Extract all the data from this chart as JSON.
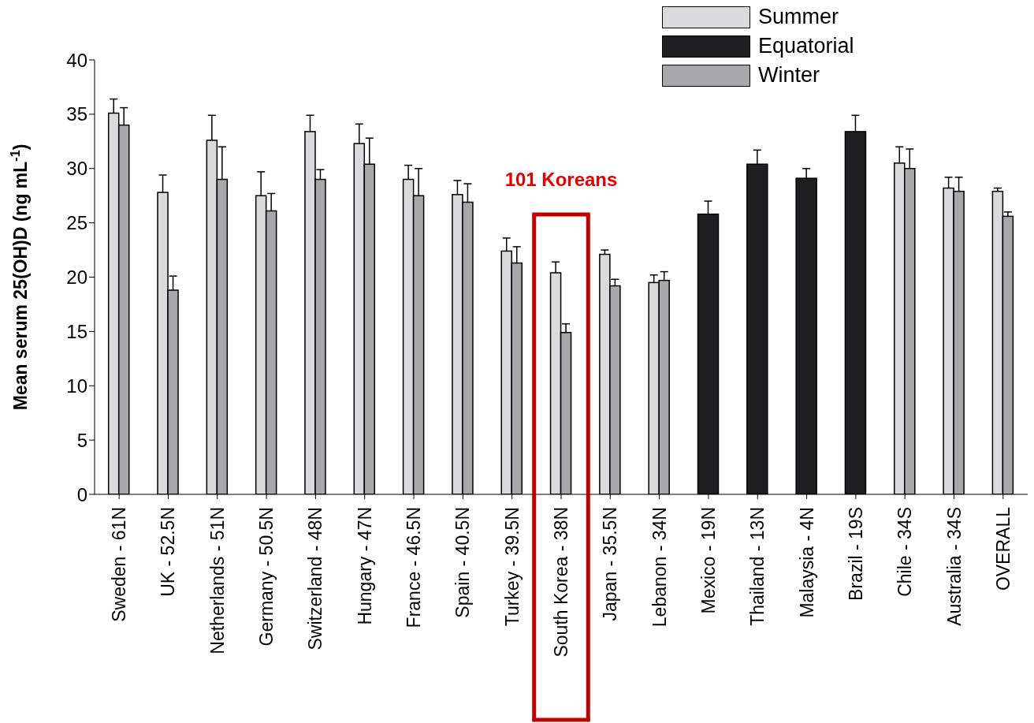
{
  "chart_data": {
    "type": "bar",
    "ylabel": "Mean serum 25(OH)D (ng mL$^{-1}$)",
    "categories": [
      "Sweden - 61N",
      "UK - 52.5N",
      "Netherlands - 51N",
      "Germany - 50.5N",
      "Switzerland - 48N",
      "Hungary - 47N",
      "France - 46.5N",
      "Spain - 40.5N",
      "Turkey - 39.5N",
      "South Korea - 38N",
      "Japan - 35.5N",
      "Lebanon - 34N",
      "Mexico - 19N",
      "Thailand - 13N",
      "Malaysia - 4N",
      "Brazil - 19S",
      "Chile - 34S",
      "Australia - 34S",
      "OVERALL"
    ],
    "series": [
      {
        "name": "Summer",
        "color": "#dadadc",
        "values": [
          35.1,
          27.8,
          32.6,
          27.5,
          33.4,
          32.3,
          29.0,
          27.6,
          22.4,
          20.4,
          22.1,
          19.5,
          null,
          null,
          null,
          null,
          30.5,
          28.2,
          27.9
        ],
        "errors": [
          1.3,
          1.6,
          2.3,
          2.2,
          1.5,
          1.8,
          1.3,
          1.3,
          1.2,
          1.0,
          0.4,
          0.7,
          null,
          null,
          null,
          null,
          1.5,
          1.0,
          0.3
        ]
      },
      {
        "name": "Equatorial",
        "color": "#1e1e20",
        "values": [
          null,
          null,
          null,
          null,
          null,
          null,
          null,
          null,
          null,
          null,
          null,
          null,
          25.8,
          30.4,
          29.1,
          33.4,
          null,
          null,
          null
        ],
        "errors": [
          null,
          null,
          null,
          null,
          null,
          null,
          null,
          null,
          null,
          null,
          null,
          null,
          1.2,
          1.3,
          0.9,
          1.5,
          null,
          null,
          null
        ]
      },
      {
        "name": "Winter",
        "color": "#a8a8aa",
        "values": [
          34.0,
          18.8,
          29.0,
          26.1,
          29.0,
          30.4,
          27.5,
          26.9,
          21.3,
          14.9,
          19.2,
          19.7,
          null,
          null,
          null,
          null,
          30.0,
          27.9,
          25.6
        ],
        "errors": [
          1.6,
          1.3,
          3.0,
          1.6,
          0.9,
          2.4,
          2.5,
          1.7,
          1.5,
          0.8,
          0.6,
          0.8,
          null,
          null,
          null,
          null,
          1.8,
          1.3,
          0.4
        ]
      }
    ],
    "ylim": [
      0,
      40
    ],
    "yticks": [
      0,
      5,
      10,
      15,
      20,
      25,
      30,
      35,
      40
    ],
    "grid": false,
    "legend": "top right",
    "annotations": [
      "101 Koreans"
    ]
  }
}
